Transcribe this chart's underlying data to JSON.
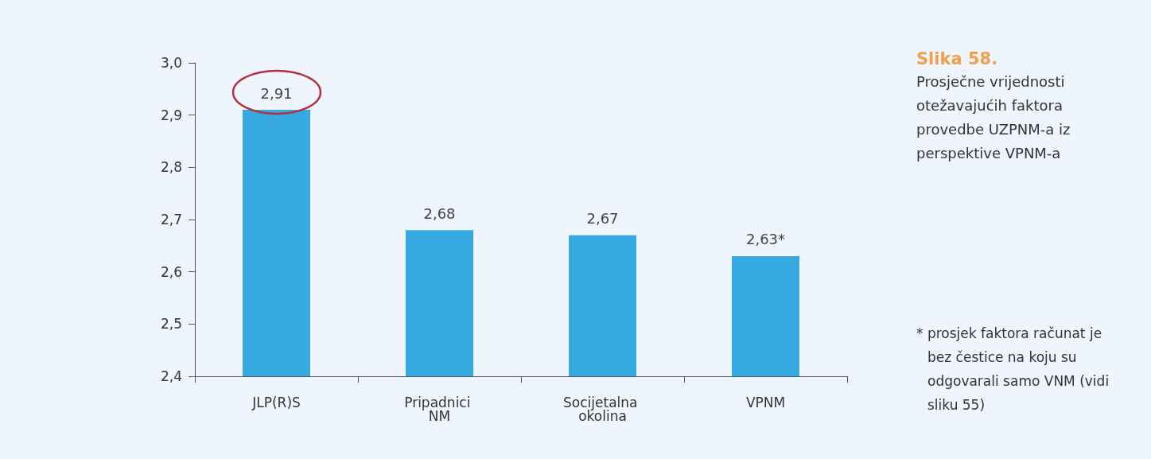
{
  "chart_data": {
    "type": "bar",
    "title": "Slika 58.",
    "subtitle": "Prosječne vrijednosti otežavajućih faktora provedbe UZPNM-a iz perspektive VPNM-a",
    "categories": [
      "JLP(R)S",
      "Pripadnici NM",
      "Socijetalna okolina",
      "VPNM"
    ],
    "values": [
      2.91,
      2.68,
      2.67,
      2.63
    ],
    "value_labels": [
      "2,91",
      "2,68",
      "2,67",
      "2,63*"
    ],
    "color": "#36a9e0",
    "ylim": [
      2.4,
      3.0
    ],
    "yticks": [
      {
        "value": 2.4,
        "label": "2,4"
      },
      {
        "value": 2.5,
        "label": "2,5"
      },
      {
        "value": 2.6,
        "label": "2,6"
      },
      {
        "value": 2.7,
        "label": "2,7"
      },
      {
        "value": 2.8,
        "label": "2,8"
      },
      {
        "value": 2.9,
        "label": "2,9"
      },
      {
        "value": 3.0,
        "label": "3,0"
      }
    ],
    "annotations": [
      "* prosjek faktora računat je bez čestice na koju su odgovarali samo VNM (vidi sliku 55)"
    ]
  }
}
